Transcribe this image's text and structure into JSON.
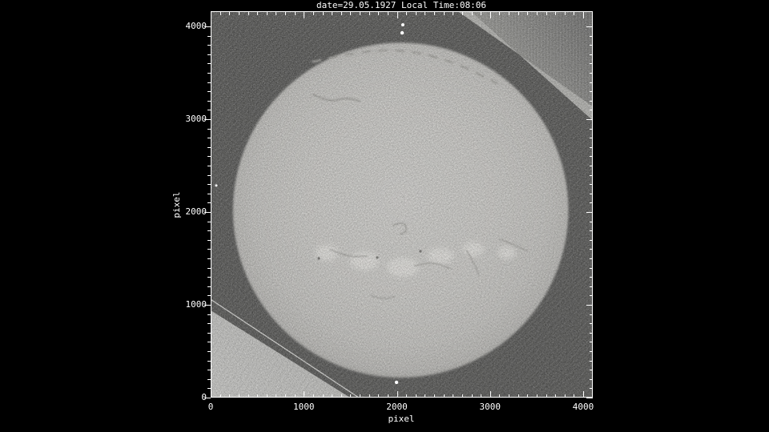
{
  "window": {
    "background": "#000000"
  },
  "colors": {
    "axis": "#ffffff",
    "text": "#ffffff",
    "plate_dark": "#4a4a48",
    "plate_edge_strip": "#b7b7b3",
    "striped_corner": "#616160",
    "striped_near_edge": "#8f8f8b",
    "wedge_bright": "#d1d1ce",
    "wedge_dim": "#c2c2bf",
    "sun_center": "#dad9d5",
    "sun_mid": "#d3d2ce",
    "sun_outer": "#cbcac6",
    "sun_edge": "#c0bfbb",
    "sun_limb": "#b4b3af",
    "filament": "#a2a19c",
    "plage": "#eeede9",
    "sunspot": "#6e6d69",
    "scratch": "#f3f3f0",
    "speck": "#ffffff"
  },
  "chart_data": {
    "type": "image",
    "title": "date=29.05.1927 Local Time:08:06",
    "xlabel": "pixel",
    "ylabel": "pixel",
    "xlim": [
      0,
      4100
    ],
    "ylim": [
      0,
      4160
    ],
    "x_ticks": [
      0,
      1000,
      2000,
      3000,
      4000
    ],
    "y_ticks": [
      0,
      1000,
      2000,
      3000,
      4000
    ],
    "minor_tick_step": 100,
    "grid": false,
    "legend": false,
    "image_description": "Scanned photographic plate spectroheliogram of the full solar disk on a dark scratched plate background; bright plate corner at lower left, bright diagonal plate-edge band at upper right, white scratch line at lower left, solar disk with dark filaments, bright plage regions, tiny sunspots and small white emulsion defects.",
    "sun_disk": {
      "center_x": 2040,
      "center_y": 2020,
      "radius": 1800
    },
    "plate_regions": {
      "corner_wedge": [
        [
          0,
          940
        ],
        [
          1497,
          0
        ],
        [
          0,
          0
        ]
      ],
      "edge_band_region": [
        [
          2658,
          4160
        ],
        [
          4100,
          4160
        ],
        [
          4100,
          3140
        ]
      ],
      "edge_band": [
        [
          2658,
          4160
        ],
        [
          4100,
          3140
        ],
        [
          4100,
          2990
        ],
        [
          2796,
          4160
        ]
      ]
    },
    "scratch_line": [
      [
        -25,
        1075
      ],
      [
        1590,
        0
      ]
    ],
    "filaments": [
      {
        "pts": [
          [
            1100,
            3620
          ],
          [
            1600,
            3735
          ],
          [
            2100,
            3748
          ],
          [
            2600,
            3625
          ],
          [
            3070,
            3390
          ]
        ],
        "w": 3,
        "dashed": true
      },
      {
        "pts": [
          [
            1100,
            3265
          ],
          [
            1280,
            3180
          ],
          [
            1450,
            3235
          ],
          [
            1600,
            3195
          ]
        ],
        "w": 2.5,
        "dashed": false
      },
      {
        "pts": [
          [
            1960,
            1855
          ],
          [
            2070,
            1905
          ],
          [
            2115,
            1800
          ],
          [
            2040,
            1760
          ]
        ],
        "w": 2,
        "dashed": false
      },
      {
        "pts": [
          [
            1290,
            1595
          ],
          [
            1460,
            1515
          ],
          [
            1680,
            1525
          ]
        ],
        "w": 1.6,
        "dashed": false
      },
      {
        "pts": [
          [
            2190,
            1420
          ],
          [
            2360,
            1470
          ],
          [
            2580,
            1390
          ]
        ],
        "w": 1.6,
        "dashed": false
      },
      {
        "pts": [
          [
            2750,
            1580
          ],
          [
            2830,
            1450
          ],
          [
            2880,
            1320
          ]
        ],
        "w": 1.6,
        "dashed": false
      },
      {
        "pts": [
          [
            3100,
            1710
          ],
          [
            3260,
            1645
          ],
          [
            3400,
            1580
          ]
        ],
        "w": 1.6,
        "dashed": false
      },
      {
        "pts": [
          [
            1720,
            1100
          ],
          [
            1850,
            1055
          ],
          [
            1980,
            1090
          ]
        ],
        "w": 1.6,
        "dashed": false
      }
    ],
    "plages": [
      {
        "x": 1247,
        "y": 1560,
        "rx": 120,
        "ry": 86
      },
      {
        "x": 1651,
        "y": 1474,
        "rx": 155,
        "ry": 103
      },
      {
        "x": 2064,
        "y": 1405,
        "rx": 172,
        "ry": 103
      },
      {
        "x": 2469,
        "y": 1526,
        "rx": 138,
        "ry": 86
      },
      {
        "x": 2821,
        "y": 1600,
        "rx": 112,
        "ry": 77
      },
      {
        "x": 3180,
        "y": 1560,
        "rx": 95,
        "ry": 70
      }
    ],
    "sunspots": [
      {
        "x": 1161,
        "y": 1500
      },
      {
        "x": 1789,
        "y": 1509
      },
      {
        "x": 2253,
        "y": 1578
      }
    ],
    "specks": [
      {
        "x": 2064,
        "y": 4017,
        "r": 2.0
      },
      {
        "x": 2056,
        "y": 3930,
        "r": 2.2
      },
      {
        "x": 1996,
        "y": 165,
        "r": 2.2
      },
      {
        "x": 60,
        "y": 2285,
        "r": 1.5
      }
    ]
  }
}
